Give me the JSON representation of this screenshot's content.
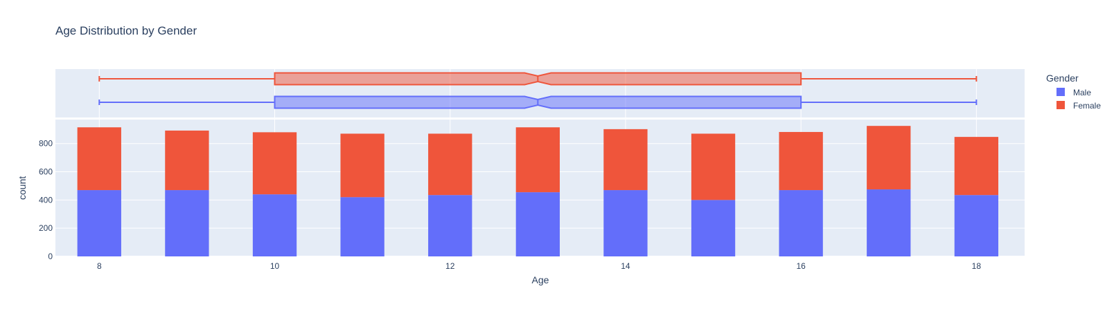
{
  "chart_data": {
    "type": "bar",
    "title": "Age Distribution by Gender",
    "xlabel": "Age",
    "ylabel": "count",
    "barmode": "stack",
    "categories": [
      8,
      9,
      10,
      11,
      12,
      13,
      14,
      15,
      16,
      17,
      18
    ],
    "x_ticks": [
      8,
      10,
      12,
      14,
      16,
      18
    ],
    "xlim": [
      7.5,
      18.55
    ],
    "ylim": [
      0,
      970
    ],
    "y_ticks": [
      0,
      200,
      400,
      600,
      800
    ],
    "grid": true,
    "legend": {
      "title": "Gender",
      "placement": "top-right"
    },
    "series": [
      {
        "name": "Male",
        "color": "#636efa",
        "values": [
          470,
          470,
          440,
          420,
          435,
          455,
          470,
          400,
          470,
          475,
          435
        ]
      },
      {
        "name": "Female",
        "color": "#ef553b",
        "values": [
          445,
          422,
          440,
          450,
          435,
          460,
          432,
          470,
          412,
          450,
          412
        ]
      }
    ],
    "marginal_box": [
      {
        "name": "Female",
        "color": "#ef553b",
        "min": 8,
        "q1": 10,
        "median": 13,
        "q3": 16,
        "max": 18,
        "notch": [
          12.85,
          13.15
        ]
      },
      {
        "name": "Male",
        "color": "#636efa",
        "min": 8,
        "q1": 10,
        "median": 13,
        "q3": 16,
        "max": 18,
        "notch": [
          12.85,
          13.15
        ]
      }
    ]
  }
}
